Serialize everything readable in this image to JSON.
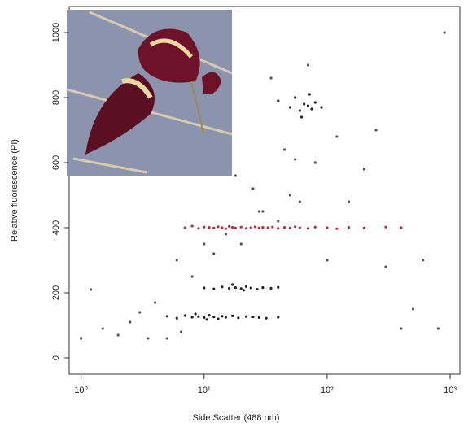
{
  "chart_data": {
    "type": "scatter",
    "xlabel": "Side Scatter (488 nm)",
    "ylabel": "Relative fluorescence (PI)",
    "xscale": "log",
    "xlim": [
      0.8,
      1200
    ],
    "ylim": [
      -50,
      1080
    ],
    "xticks": [
      {
        "value": 1,
        "label": "10⁰"
      },
      {
        "value": 10,
        "label": "10¹"
      },
      {
        "value": 100,
        "label": "10²"
      },
      {
        "value": 1000,
        "label": "10³"
      }
    ],
    "yticks": [
      0,
      200,
      400,
      600,
      800,
      1000
    ],
    "series": [
      {
        "color": "#222222",
        "x": [
          5,
          6,
          7,
          8,
          9,
          10,
          11,
          12,
          13,
          14,
          15,
          17,
          19,
          22,
          25,
          28,
          32,
          40,
          8.5,
          10.5
        ],
        "values": [
          128,
          122,
          130,
          125,
          127,
          124,
          131,
          126,
          120,
          128,
          125,
          129,
          123,
          127,
          126,
          124,
          122,
          125,
          135,
          118
        ]
      },
      {
        "color": "#222222",
        "x": [
          10,
          12,
          14,
          16,
          18,
          20,
          22,
          24,
          27,
          30,
          35,
          40,
          17,
          21
        ],
        "values": [
          215,
          212,
          218,
          214,
          216,
          213,
          219,
          215,
          211,
          216,
          214,
          217,
          225,
          208
        ]
      },
      {
        "color": "#222222",
        "x": [
          40,
          50,
          55,
          60,
          65,
          70,
          75,
          80,
          90,
          62,
          72
        ],
        "values": [
          790,
          770,
          800,
          760,
          780,
          775,
          765,
          785,
          770,
          740,
          810
        ]
      },
      {
        "color": "#555555",
        "x": [
          1,
          1.5,
          2,
          3,
          4,
          5,
          6,
          8,
          12,
          20,
          30,
          50,
          80,
          120,
          200,
          300,
          500,
          800,
          1.2,
          2.5,
          3.5,
          15,
          25,
          45,
          70,
          150,
          250,
          400,
          600,
          900,
          18,
          35,
          60,
          10,
          6.5,
          28,
          100,
          40,
          55
        ],
        "values": [
          60,
          90,
          70,
          140,
          170,
          60,
          300,
          250,
          320,
          350,
          450,
          500,
          600,
          680,
          580,
          280,
          150,
          90,
          210,
          110,
          60,
          380,
          520,
          640,
          900,
          480,
          700,
          90,
          300,
          1000,
          560,
          860,
          480,
          350,
          80,
          450,
          300,
          420,
          610
        ]
      },
      {
        "color": "#c0283c",
        "x": [
          7,
          8,
          9,
          10,
          11,
          12,
          13,
          14,
          15,
          16,
          17,
          18,
          20,
          22,
          24,
          26,
          28,
          30,
          33,
          36,
          40,
          45,
          50,
          55,
          60,
          70,
          80,
          100,
          120,
          150,
          200,
          300,
          400
        ],
        "values": [
          400,
          405,
          398,
          402,
          401,
          399,
          403,
          400,
          397,
          404,
          401,
          399,
          402,
          398,
          400,
          403,
          399,
          401,
          400,
          402,
          398,
          401,
          399,
          403,
          400,
          398,
          402,
          400,
          397,
          401,
          399,
          402,
          400
        ]
      }
    ]
  }
}
